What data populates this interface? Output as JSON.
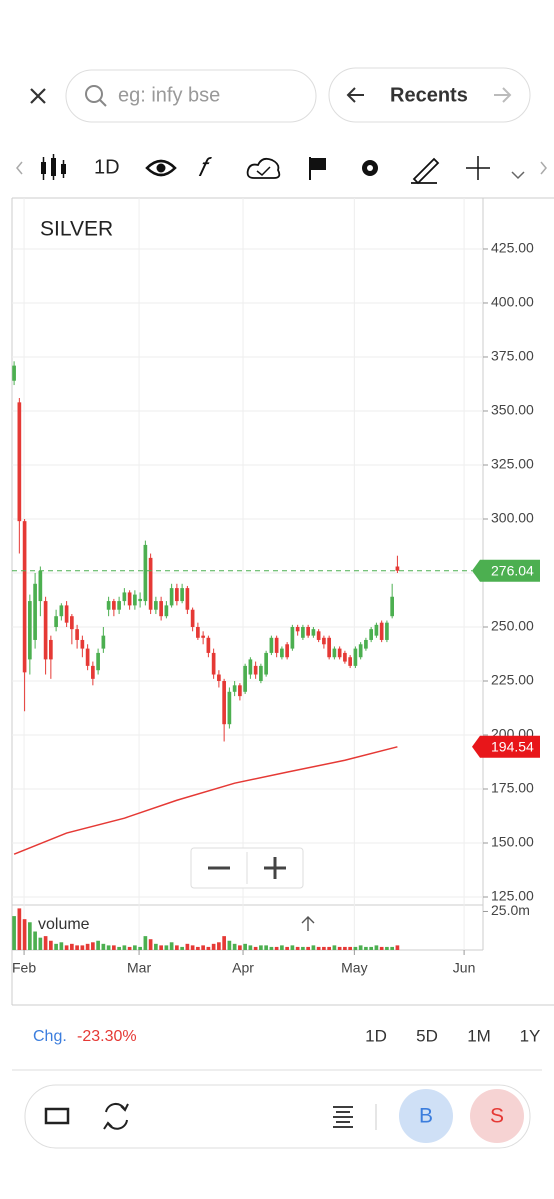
{
  "header": {
    "search_placeholder": "eg: infy bse",
    "recents": "Recents"
  },
  "toolbar": {
    "interval": "1D"
  },
  "chart_data": {
    "type": "candlestick",
    "title": "SILVER",
    "up_color": "#4caf50",
    "down_color": "#e53935",
    "ohlc": [
      {
        "open": 364,
        "high": 373,
        "low": 362,
        "close": 371
      },
      {
        "open": 354,
        "high": 356,
        "low": 284,
        "close": 299
      },
      {
        "open": 299,
        "high": 300,
        "low": 211,
        "close": 229
      },
      {
        "open": 235,
        "high": 265,
        "low": 228,
        "close": 262
      },
      {
        "open": 244,
        "high": 275,
        "low": 240,
        "close": 270
      },
      {
        "open": 262,
        "high": 278,
        "low": 255,
        "close": 276
      },
      {
        "open": 262,
        "high": 264,
        "low": 228,
        "close": 235
      },
      {
        "open": 244,
        "high": 246,
        "low": 226,
        "close": 235
      },
      {
        "open": 250,
        "high": 258,
        "low": 248,
        "close": 255
      },
      {
        "open": 255,
        "high": 261,
        "low": 253,
        "close": 260
      },
      {
        "open": 260,
        "high": 262,
        "low": 250,
        "close": 252
      },
      {
        "open": 255,
        "high": 256,
        "low": 242,
        "close": 249
      },
      {
        "open": 249,
        "high": 251,
        "low": 240,
        "close": 244
      },
      {
        "open": 244,
        "high": 246,
        "low": 236,
        "close": 240
      },
      {
        "open": 240,
        "high": 242,
        "low": 230,
        "close": 232
      },
      {
        "open": 232,
        "high": 234,
        "low": 223,
        "close": 226
      },
      {
        "open": 230,
        "high": 240,
        "low": 228,
        "close": 238
      },
      {
        "open": 240,
        "high": 250,
        "low": 238,
        "close": 246
      },
      {
        "open": 258,
        "high": 264,
        "low": 255,
        "close": 262
      },
      {
        "open": 262,
        "high": 263,
        "low": 255,
        "close": 258
      },
      {
        "open": 258,
        "high": 264,
        "low": 256,
        "close": 262
      },
      {
        "open": 262,
        "high": 268,
        "low": 260,
        "close": 266
      },
      {
        "open": 266,
        "high": 267,
        "low": 258,
        "close": 260
      },
      {
        "open": 260,
        "high": 267,
        "low": 258,
        "close": 265
      },
      {
        "open": 262,
        "high": 266,
        "low": 259,
        "close": 263
      },
      {
        "open": 262,
        "high": 290,
        "low": 260,
        "close": 288
      },
      {
        "open": 282,
        "high": 284,
        "low": 256,
        "close": 258
      },
      {
        "open": 258,
        "high": 264,
        "low": 256,
        "close": 262
      },
      {
        "open": 262,
        "high": 264,
        "low": 253,
        "close": 255
      },
      {
        "open": 255,
        "high": 262,
        "low": 254,
        "close": 260
      },
      {
        "open": 260,
        "high": 270,
        "low": 259,
        "close": 268
      },
      {
        "open": 268,
        "high": 270,
        "low": 260,
        "close": 262
      },
      {
        "open": 262,
        "high": 270,
        "low": 261,
        "close": 268
      },
      {
        "open": 268,
        "high": 269,
        "low": 256,
        "close": 258
      },
      {
        "open": 258,
        "high": 259,
        "low": 248,
        "close": 250
      },
      {
        "open": 250,
        "high": 252,
        "low": 244,
        "close": 245
      },
      {
        "open": 246,
        "high": 248,
        "low": 242,
        "close": 245
      },
      {
        "open": 245,
        "high": 246,
        "low": 236,
        "close": 238
      },
      {
        "open": 238,
        "high": 240,
        "low": 226,
        "close": 228
      },
      {
        "open": 228,
        "high": 230,
        "low": 222,
        "close": 225
      },
      {
        "open": 225,
        "high": 226,
        "low": 197,
        "close": 205
      },
      {
        "open": 205,
        "high": 222,
        "low": 203,
        "close": 220
      },
      {
        "open": 220,
        "high": 225,
        "low": 218,
        "close": 223
      },
      {
        "open": 223,
        "high": 224,
        "low": 216,
        "close": 218
      },
      {
        "open": 220,
        "high": 233,
        "low": 219,
        "close": 232
      },
      {
        "open": 228,
        "high": 236,
        "low": 226,
        "close": 235
      },
      {
        "open": 232,
        "high": 234,
        "low": 226,
        "close": 228
      },
      {
        "open": 225,
        "high": 233,
        "low": 224,
        "close": 232
      },
      {
        "open": 228,
        "high": 239,
        "low": 227,
        "close": 238
      },
      {
        "open": 238,
        "high": 246,
        "low": 237,
        "close": 245
      },
      {
        "open": 245,
        "high": 246,
        "low": 236,
        "close": 238
      },
      {
        "open": 236,
        "high": 241,
        "low": 235,
        "close": 240
      },
      {
        "open": 242,
        "high": 243,
        "low": 235,
        "close": 236
      },
      {
        "open": 240,
        "high": 251,
        "low": 239,
        "close": 250
      },
      {
        "open": 250,
        "high": 251,
        "low": 246,
        "close": 248
      },
      {
        "open": 245,
        "high": 251,
        "low": 244,
        "close": 250
      },
      {
        "open": 250,
        "high": 251,
        "low": 245,
        "close": 246
      },
      {
        "open": 246,
        "high": 250,
        "low": 245,
        "close": 249
      },
      {
        "open": 248,
        "high": 249,
        "low": 243,
        "close": 244
      },
      {
        "open": 245,
        "high": 246,
        "low": 240,
        "close": 242
      },
      {
        "open": 245,
        "high": 246,
        "low": 235,
        "close": 236
      },
      {
        "open": 236,
        "high": 241,
        "low": 235,
        "close": 240
      },
      {
        "open": 240,
        "high": 241,
        "low": 235,
        "close": 236
      },
      {
        "open": 238,
        "high": 239,
        "low": 233,
        "close": 234
      },
      {
        "open": 236,
        "high": 237,
        "low": 231,
        "close": 232
      },
      {
        "open": 232,
        "high": 241,
        "low": 231,
        "close": 240
      },
      {
        "open": 236,
        "high": 243,
        "low": 235,
        "close": 242
      },
      {
        "open": 240,
        "high": 245,
        "low": 239,
        "close": 244
      },
      {
        "open": 244,
        "high": 250,
        "low": 243,
        "close": 249
      },
      {
        "open": 246,
        "high": 252,
        "low": 245,
        "close": 251
      },
      {
        "open": 252,
        "high": 253,
        "low": 243,
        "close": 244
      },
      {
        "open": 244,
        "high": 253,
        "low": 243,
        "close": 252
      },
      {
        "open": 255,
        "high": 270,
        "low": 254,
        "close": 264
      },
      {
        "open": 278,
        "high": 283,
        "low": 275,
        "close": 276.04
      }
    ],
    "xlim": [
      -0.4,
      89.3
    ],
    "xticks": [
      {
        "value": 1.9,
        "label": "Feb"
      },
      {
        "value": 23.8,
        "label": "Mar"
      },
      {
        "value": 43.6,
        "label": "Apr"
      },
      {
        "value": 64.8,
        "label": "May"
      },
      {
        "value": 85.7,
        "label": "Jun"
      }
    ],
    "ylim": [
      121.3,
      448.6
    ],
    "yticks": [
      {
        "value": 125,
        "label": "125.00"
      },
      {
        "value": 150,
        "label": "150.00"
      },
      {
        "value": 175,
        "label": "175.00"
      },
      {
        "value": 200,
        "label": "200.00"
      },
      {
        "value": 225,
        "label": "225.00"
      },
      {
        "value": 250,
        "label": "250.00"
      },
      {
        "value": 275,
        "label": "275.00"
      },
      {
        "value": 300,
        "label": "300.00"
      },
      {
        "value": 325,
        "label": "325.00"
      },
      {
        "value": 350,
        "label": "350.00"
      },
      {
        "value": 375,
        "label": "375.00"
      },
      {
        "value": 400,
        "label": "400.00"
      },
      {
        "value": 425,
        "label": "425.00"
      }
    ],
    "grid": true,
    "last_price": 276.04,
    "sma": {
      "color": "#e53935",
      "x": [
        0,
        10,
        21,
        31,
        42,
        52,
        63,
        73
      ],
      "values": [
        144.8,
        154.6,
        161.5,
        169.8,
        177.7,
        182.8,
        188.3,
        194.54
      ],
      "last": 194.54
    },
    "volume": {
      "label": "volume",
      "ylim": [
        0,
        29.2
      ],
      "yticks": [
        {
          "value": 25,
          "label": "25.0m"
        }
      ],
      "values": [
        22,
        27,
        20,
        18,
        12,
        8,
        9,
        6,
        4,
        5,
        3,
        4,
        3,
        3,
        4,
        5,
        6,
        4,
        3,
        3,
        2,
        3,
        2,
        3,
        2,
        9,
        7,
        4,
        3,
        3,
        5,
        3,
        2,
        4,
        3,
        2,
        3,
        2,
        4,
        5,
        9,
        6,
        4,
        3,
        4,
        3,
        2,
        3,
        3,
        2,
        2,
        3,
        2,
        3,
        2,
        2,
        2,
        3,
        2,
        2,
        2,
        3,
        2,
        2,
        2,
        2,
        3,
        2,
        2,
        3,
        2,
        2,
        2,
        3
      ]
    }
  },
  "footer": {
    "change_label": "Chg.",
    "change": "-23.30%",
    "ranges": [
      "1D",
      "5D",
      "1M",
      "1Y"
    ]
  },
  "actions": {
    "buy": "B",
    "sell": "S"
  }
}
